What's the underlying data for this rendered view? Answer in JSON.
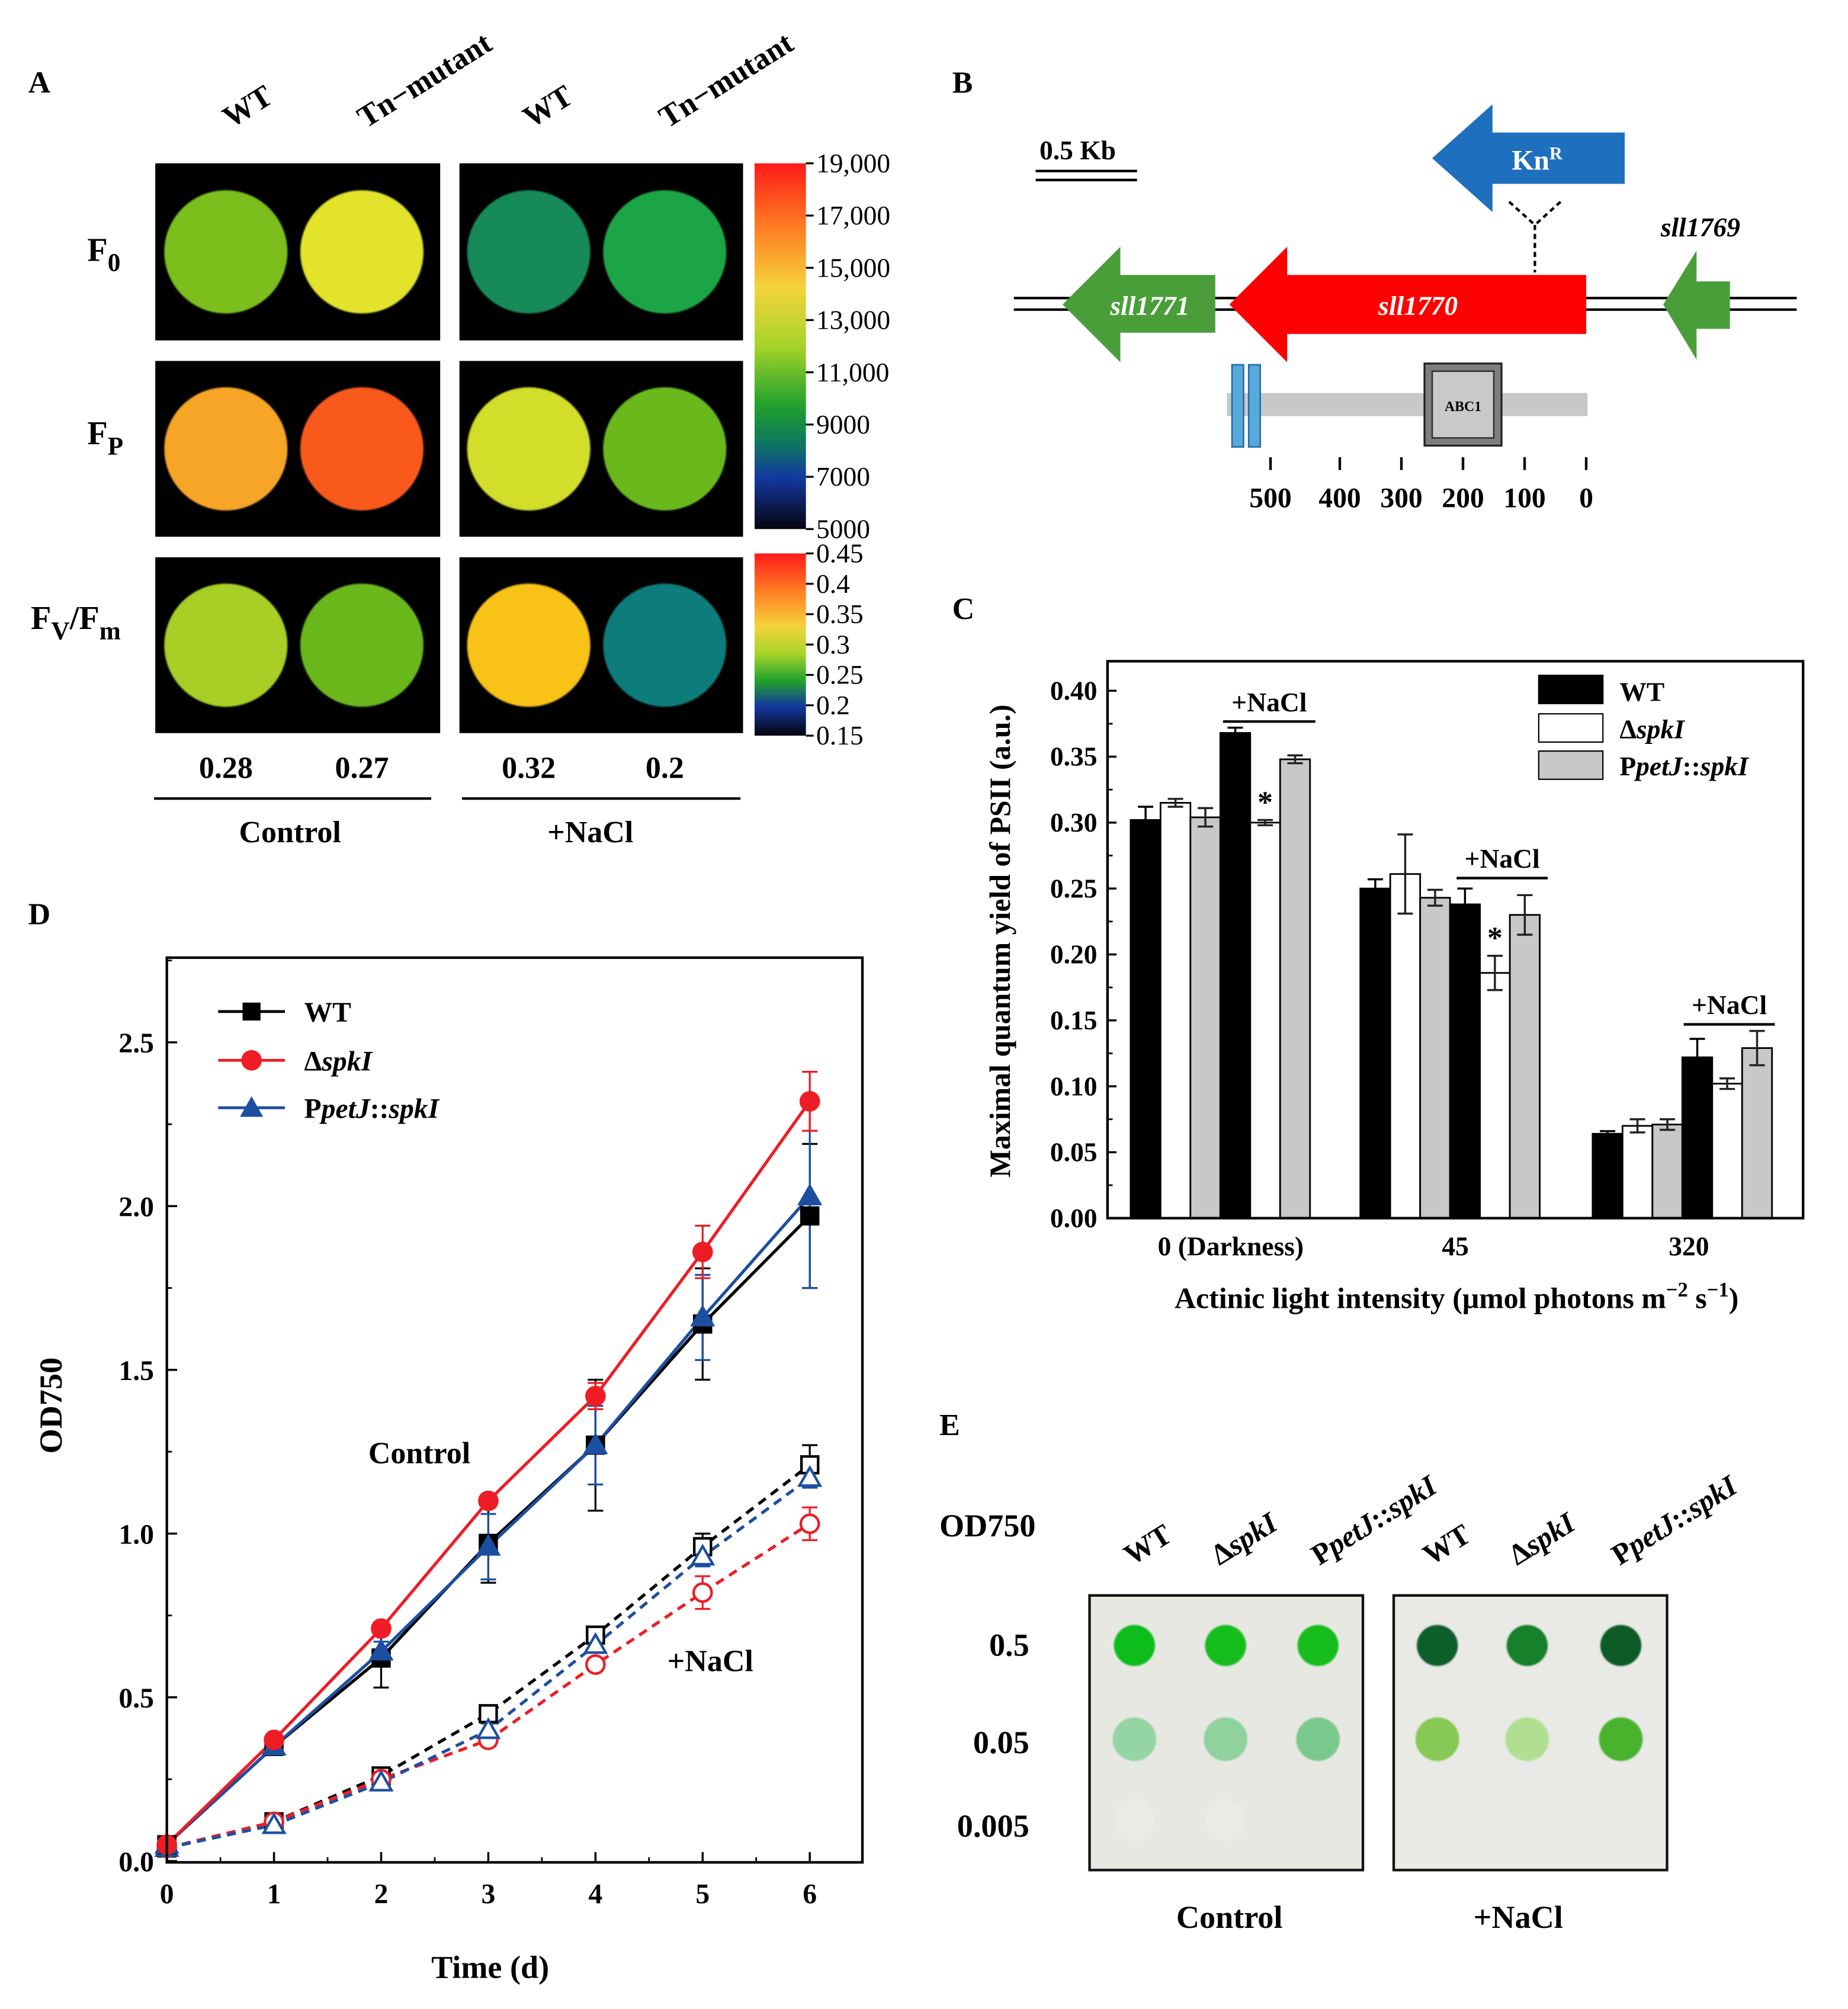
{
  "figure": {
    "panel_labels": [
      "A",
      "B",
      "C",
      "D",
      "E"
    ]
  },
  "panel_a": {
    "column_headers": [
      "WT",
      "Tn−mutant",
      "WT",
      "Tn−mutant"
    ],
    "row_labels": [
      {
        "main": "F",
        "sub": "0"
      },
      {
        "main": "F",
        "sub": "P"
      },
      {
        "main": "F",
        "sub": "V",
        "tail": "/F",
        "tail_sub": "m"
      }
    ],
    "spot_colors": [
      [
        "#7bbf1b",
        "#e2e32a",
        "#168a58",
        "#1fa547"
      ],
      [
        "#f7a528",
        "#f95a1c",
        "#d2de2c",
        "#69b91d"
      ],
      [
        "#a9cf25",
        "#6ab81f",
        "#f8c318",
        "#0a7b7a"
      ]
    ],
    "fvfm_values": [
      "0.28",
      "0.27",
      "0.32",
      "0.2"
    ],
    "group_labels": [
      "Control",
      "+NaCl"
    ],
    "scale1_ticks": [
      "19,000",
      "17,000",
      "15,000",
      "13,000",
      "11,000",
      "9000",
      "7000",
      "5000"
    ],
    "scale2_ticks": [
      "0.45",
      "0.4",
      "0.35",
      "0.3",
      "0.25",
      "0.2",
      "0.15"
    ]
  },
  "panel_b": {
    "scale_bar_label": "0.5 Kb",
    "kanr_label": {
      "main": "Kn",
      "sup": "R"
    },
    "genes": [
      "sll1771",
      "sll1770",
      "sll1769"
    ],
    "domain_label": "ABC1",
    "axis_ticks": [
      "500",
      "400",
      "300",
      "200",
      "100",
      "0"
    ],
    "colors": {
      "kanr": "#1f6fbf",
      "sll1770": "#ff0000",
      "flank_genes": "#4a9e3a",
      "tm_helix": "#5aa9dd"
    }
  },
  "panel_c": {
    "ylabel": "Maximal quantum yield of PSII (a.u.)",
    "xlabel": {
      "pre": "Actinic light intensity (μmol photons m",
      "sup1": "−2",
      "mid": " s",
      "sup2": "−1",
      "post": ")"
    },
    "nacl_label": "+NaCl",
    "sig_mark": "*",
    "legend": [
      {
        "pre": "WT",
        "it": "",
        "post": ""
      },
      {
        "pre": "Δ",
        "it": "spkI",
        "post": ""
      },
      {
        "pre": "P",
        "it": "petJ",
        "post": "::",
        "it2": "spkI"
      }
    ]
  },
  "panel_d": {
    "annotations": [
      "Control",
      "+NaCl"
    ],
    "legend": [
      {
        "pre": "WT",
        "it": "",
        "post": ""
      },
      {
        "pre": "Δ",
        "it": "spkI",
        "post": ""
      },
      {
        "pre": "P",
        "it": "petJ",
        "post": "::",
        "it2": "spkI"
      }
    ]
  },
  "panel_e": {
    "row_header": "OD750",
    "column_headers": [
      {
        "pre": "WT",
        "it": "",
        "post": "",
        "it2": ""
      },
      {
        "pre": "Δ",
        "it": "spkI",
        "post": "",
        "it2": ""
      },
      {
        "pre": "P",
        "it": "petJ",
        "post": "::",
        "it2": "spkI"
      },
      {
        "pre": "WT",
        "it": "",
        "post": "",
        "it2": ""
      },
      {
        "pre": "Δ",
        "it": "spkI",
        "post": "",
        "it2": ""
      },
      {
        "pre": "P",
        "it": "petJ",
        "post": "::",
        "it2": "spkI"
      }
    ],
    "row_labels": [
      "0.5",
      "0.05",
      "0.005"
    ],
    "group_labels": [
      "Control",
      "+NaCl"
    ],
    "spot_colors": [
      [
        "#11bd1a",
        "#12be1b",
        "#13bd1b",
        "#0e5f2a",
        "#12802c",
        "#0d5a26"
      ],
      [
        "#95d4a3",
        "#8fd29d",
        "#7ac98c",
        "#86c957",
        "#b1df92",
        "#4ab32d"
      ],
      [
        "#ebebe6",
        "#ebebe6",
        "#e8e8e2",
        "#e9e9e5",
        "#e9e9e5",
        "#e9e9e5"
      ]
    ]
  },
  "chart_data": [
    {
      "type": "bar",
      "panel": "C",
      "title": "",
      "categories": [
        "0 (Darkness)",
        "45",
        "320"
      ],
      "ylabel": "Maximal quantum yield of PSII (a.u.)",
      "ylim": [
        0,
        0.4
      ],
      "yticks": [
        "0.00",
        "0.05",
        "0.10",
        "0.15",
        "0.20",
        "0.25",
        "0.30",
        "0.35",
        "0.40"
      ],
      "series": [
        {
          "name": "WT",
          "condition": "Control",
          "color": "#000000",
          "values": [
            0.302,
            0.25,
            0.064
          ],
          "errors": [
            0.01,
            0.007,
            0.002
          ]
        },
        {
          "name": "ΔspkI",
          "condition": "Control",
          "color": "#ffffff",
          "values": [
            0.315,
            0.261,
            0.07
          ],
          "errors": [
            0.003,
            0.03,
            0.005
          ]
        },
        {
          "name": "PpetJ::spkI",
          "condition": "Control",
          "color": "#c8c8c8",
          "values": [
            0.304,
            0.243,
            0.071
          ],
          "errors": [
            0.007,
            0.006,
            0.004
          ]
        },
        {
          "name": "WT",
          "condition": "+NaCl",
          "color": "#000000",
          "values": [
            0.368,
            0.238,
            0.122
          ],
          "errors": [
            0.004,
            0.012,
            0.014
          ]
        },
        {
          "name": "ΔspkI",
          "condition": "+NaCl",
          "color": "#ffffff",
          "values": [
            0.3,
            0.186,
            0.102
          ],
          "errors": [
            0.002,
            0.013,
            0.004
          ]
        },
        {
          "name": "PpetJ::spkI",
          "condition": "+NaCl",
          "color": "#c8c8c8",
          "values": [
            0.348,
            0.23,
            0.129
          ],
          "errors": [
            0.003,
            0.015,
            0.013
          ]
        }
      ]
    },
    {
      "type": "line",
      "panel": "D",
      "title": "",
      "xlabel": "Time (d)",
      "ylabel": "OD750",
      "x": [
        0,
        1,
        2,
        3,
        4,
        5,
        6
      ],
      "xlim": [
        0,
        6.5
      ],
      "ylim": [
        0,
        2.75
      ],
      "xticks": [
        "0",
        "1",
        "2",
        "3",
        "4",
        "5",
        "6"
      ],
      "yticks": [
        "0.0",
        "0.5",
        "1.0",
        "1.5",
        "2.0",
        "2.5"
      ],
      "series": [
        {
          "name": "WT",
          "condition": "Control",
          "color": "#000000",
          "marker": "square",
          "filled": true,
          "dashed": false,
          "values": [
            0.05,
            0.35,
            0.62,
            0.97,
            1.27,
            1.64,
            1.97
          ],
          "errors": [
            0.01,
            0.02,
            0.09,
            0.12,
            0.2,
            0.17,
            0.22
          ]
        },
        {
          "name": "ΔspkI",
          "condition": "Control",
          "color": "#ee1c25",
          "marker": "circle",
          "filled": true,
          "dashed": false,
          "values": [
            0.05,
            0.37,
            0.71,
            1.1,
            1.42,
            1.86,
            2.32
          ],
          "errors": [
            0.01,
            0.01,
            0.02,
            0.02,
            0.04,
            0.08,
            0.09
          ]
        },
        {
          "name": "PpetJ::spkI",
          "condition": "Control",
          "color": "#1c4fa1",
          "marker": "triangle",
          "filled": true,
          "dashed": false,
          "values": [
            0.05,
            0.35,
            0.64,
            0.96,
            1.27,
            1.66,
            2.03
          ],
          "errors": [
            0.01,
            0.02,
            0.03,
            0.1,
            0.12,
            0.13,
            0.28
          ]
        },
        {
          "name": "WT",
          "condition": "+NaCl",
          "color": "#000000",
          "marker": "square",
          "filled": false,
          "dashed": true,
          "values": [
            0.04,
            0.12,
            0.26,
            0.45,
            0.69,
            0.96,
            1.21
          ],
          "errors": [
            0.01,
            0.01,
            0.02,
            0.02,
            0.02,
            0.04,
            0.06
          ]
        },
        {
          "name": "ΔspkI",
          "condition": "+NaCl",
          "color": "#ee1c25",
          "marker": "circle",
          "filled": false,
          "dashed": true,
          "values": [
            0.04,
            0.12,
            0.25,
            0.37,
            0.6,
            0.82,
            1.03
          ],
          "errors": [
            0.01,
            0.01,
            0.01,
            0.02,
            0.02,
            0.05,
            0.05
          ]
        },
        {
          "name": "PpetJ::spkI",
          "condition": "+NaCl",
          "color": "#1c4fa1",
          "marker": "triangle",
          "filled": false,
          "dashed": true,
          "values": [
            0.04,
            0.11,
            0.24,
            0.4,
            0.66,
            0.93,
            1.17
          ],
          "errors": [
            0.01,
            0.01,
            0.01,
            0.02,
            0.02,
            0.03,
            0.03
          ]
        }
      ]
    }
  ]
}
